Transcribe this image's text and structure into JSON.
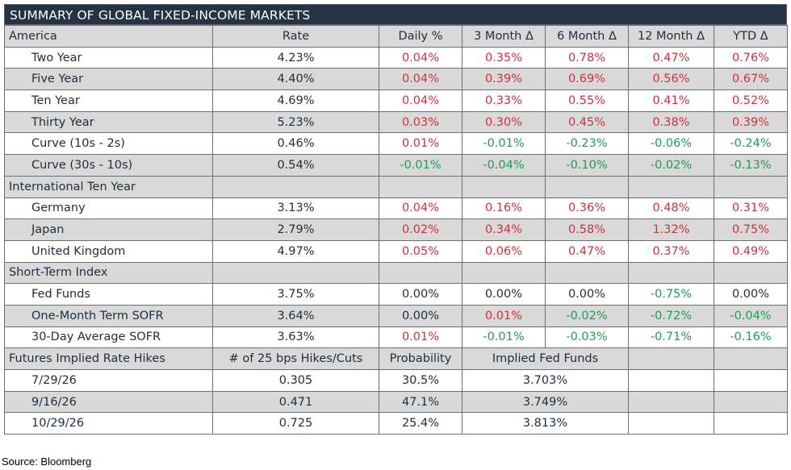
{
  "title": "SUMMARY OF GLOBAL FIXED-INCOME MARKETS",
  "header": {
    "section": "America",
    "columns": [
      "Rate",
      "Daily %",
      "3 Month Δ",
      "6 Month Δ",
      "12 Month Δ",
      "YTD Δ"
    ]
  },
  "america": [
    {
      "label": "Two Year",
      "rate": "4.23%",
      "vals": [
        "0.04%",
        "0.35%",
        "0.78%",
        "0.47%",
        "0.76%"
      ],
      "signs": [
        "pos",
        "pos",
        "pos",
        "pos",
        "pos"
      ]
    },
    {
      "label": "Five Year",
      "rate": "4.40%",
      "vals": [
        "0.04%",
        "0.39%",
        "0.69%",
        "0.56%",
        "0.67%"
      ],
      "signs": [
        "pos",
        "pos",
        "pos",
        "pos",
        "pos"
      ]
    },
    {
      "label": "Ten Year",
      "rate": "4.69%",
      "vals": [
        "0.04%",
        "0.33%",
        "0.55%",
        "0.41%",
        "0.52%"
      ],
      "signs": [
        "pos",
        "pos",
        "pos",
        "pos",
        "pos"
      ]
    },
    {
      "label": "Thirty Year",
      "rate": "5.23%",
      "vals": [
        "0.03%",
        "0.30%",
        "0.45%",
        "0.38%",
        "0.39%"
      ],
      "signs": [
        "pos",
        "pos",
        "pos",
        "pos",
        "pos"
      ]
    },
    {
      "label": "Curve (10s - 2s)",
      "rate": "0.46%",
      "vals": [
        "0.01%",
        "-0.01%",
        "-0.23%",
        "-0.06%",
        "-0.24%"
      ],
      "signs": [
        "pos",
        "neg",
        "neg",
        "neg",
        "neg"
      ]
    },
    {
      "label": "Curve (30s - 10s)",
      "rate": "0.54%",
      "vals": [
        "-0.01%",
        "-0.04%",
        "-0.10%",
        "-0.02%",
        "-0.13%"
      ],
      "signs": [
        "neg",
        "neg",
        "neg",
        "neg",
        "neg"
      ]
    }
  ],
  "international": {
    "section": "International Ten Year",
    "rows": [
      {
        "label": "Germany",
        "rate": "3.13%",
        "vals": [
          "0.04%",
          "0.16%",
          "0.36%",
          "0.48%",
          "0.31%"
        ],
        "signs": [
          "pos",
          "pos",
          "pos",
          "pos",
          "pos"
        ]
      },
      {
        "label": "Japan",
        "rate": "2.79%",
        "vals": [
          "0.02%",
          "0.34%",
          "0.58%",
          "1.32%",
          "0.75%"
        ],
        "signs": [
          "pos",
          "pos",
          "pos",
          "pos",
          "pos"
        ]
      },
      {
        "label": "United Kingdom",
        "rate": "4.97%",
        "vals": [
          "0.05%",
          "0.06%",
          "0.47%",
          "0.37%",
          "0.49%"
        ],
        "signs": [
          "pos",
          "pos",
          "pos",
          "pos",
          "pos"
        ]
      }
    ]
  },
  "short_term": {
    "section": "Short-Term Index",
    "rows": [
      {
        "label": "Fed Funds",
        "rate": "3.75%",
        "vals": [
          "0.00%",
          "0.00%",
          "0.00%",
          "-0.75%",
          "0.00%"
        ],
        "signs": [
          "neu",
          "neu",
          "neu",
          "neg",
          "neu"
        ]
      },
      {
        "label": "One-Month Term SOFR",
        "rate": "3.64%",
        "vals": [
          "0.00%",
          "0.01%",
          "-0.02%",
          "-0.72%",
          "-0.04%"
        ],
        "signs": [
          "neu",
          "pos",
          "neg",
          "neg",
          "neg"
        ]
      },
      {
        "label": "30-Day Average SOFR",
        "rate": "3.63%",
        "vals": [
          "0.01%",
          "-0.01%",
          "-0.03%",
          "-0.71%",
          "-0.16%"
        ],
        "signs": [
          "pos",
          "neg",
          "neg",
          "neg",
          "neg"
        ]
      }
    ]
  },
  "futures": {
    "header": [
      "Futures Implied Rate Hikes",
      "# of 25 bps Hikes/Cuts",
      "Probability",
      "Implied Fed Funds"
    ],
    "rows": [
      {
        "date": "7/29/26",
        "hikes": "0.305",
        "probability": "30.5%",
        "implied": "3.703%"
      },
      {
        "date": "9/16/26",
        "hikes": "0.471",
        "probability": "47.1%",
        "implied": "3.749%"
      },
      {
        "date": "10/29/26",
        "hikes": "0.725",
        "probability": "25.4%",
        "implied": "3.813%"
      }
    ]
  },
  "source": "Source: Bloomberg",
  "colors": {
    "title_bg": "#253342",
    "shade": "#d9d9d9",
    "positive": "#d2303a",
    "negative": "#1f9c58"
  }
}
